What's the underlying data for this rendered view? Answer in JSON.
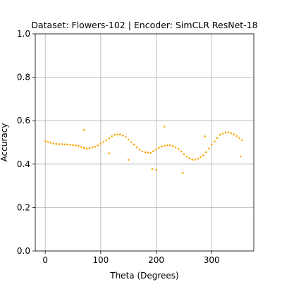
{
  "chart_data": {
    "type": "scatter",
    "title": "Dataset: Flowers-102 | Encoder: SimCLR ResNet-18",
    "x_label": "Theta (Degrees)",
    "y_label": "Accuracy",
    "color": "#ffa500",
    "grid": true,
    "xlim": [
      -18,
      376
    ],
    "ylim": [
      0,
      1
    ],
    "xticks": [
      0,
      100,
      200,
      300
    ],
    "yticks": [
      {
        "value": 0,
        "label": "0.0"
      },
      {
        "value": 0.2,
        "label": "0.2"
      },
      {
        "value": 0.4,
        "label": "0.4"
      },
      {
        "value": 0.6,
        "label": "0.6"
      },
      {
        "value": 0.8,
        "label": "0.8"
      },
      {
        "value": 1,
        "label": "1.0"
      }
    ],
    "x": [
      0,
      5,
      10,
      15,
      20,
      25,
      30,
      35,
      40,
      45,
      50,
      55,
      60,
      65,
      70,
      75,
      80,
      85,
      90,
      95,
      100,
      105,
      110,
      115,
      120,
      125,
      130,
      135,
      140,
      145,
      150,
      155,
      160,
      165,
      170,
      175,
      180,
      185,
      190,
      195,
      200,
      205,
      210,
      215,
      220,
      225,
      230,
      235,
      240,
      245,
      250,
      255,
      260,
      265,
      270,
      275,
      280,
      285,
      290,
      295,
      300,
      305,
      310,
      315,
      320,
      325,
      330,
      335,
      340,
      345,
      350,
      355,
      70,
      115,
      150,
      193,
      200,
      215,
      248,
      288,
      352
    ],
    "values": [
      0.505,
      0.502,
      0.498,
      0.495,
      0.493,
      0.492,
      0.492,
      0.491,
      0.49,
      0.489,
      0.488,
      0.486,
      0.483,
      0.479,
      0.475,
      0.472,
      0.474,
      0.477,
      0.48,
      0.486,
      0.494,
      0.502,
      0.51,
      0.519,
      0.528,
      0.535,
      0.537,
      0.537,
      0.532,
      0.525,
      0.513,
      0.501,
      0.49,
      0.478,
      0.467,
      0.458,
      0.455,
      0.453,
      0.452,
      0.46,
      0.468,
      0.475,
      0.481,
      0.485,
      0.487,
      0.487,
      0.483,
      0.477,
      0.47,
      0.458,
      0.446,
      0.435,
      0.427,
      0.421,
      0.42,
      0.425,
      0.432,
      0.44,
      0.455,
      0.472,
      0.49,
      0.505,
      0.52,
      0.535,
      0.541,
      0.545,
      0.547,
      0.543,
      0.537,
      0.53,
      0.52,
      0.51,
      0.557,
      0.45,
      0.42,
      0.378,
      0.373,
      0.573,
      0.36,
      0.528,
      0.435
    ]
  }
}
